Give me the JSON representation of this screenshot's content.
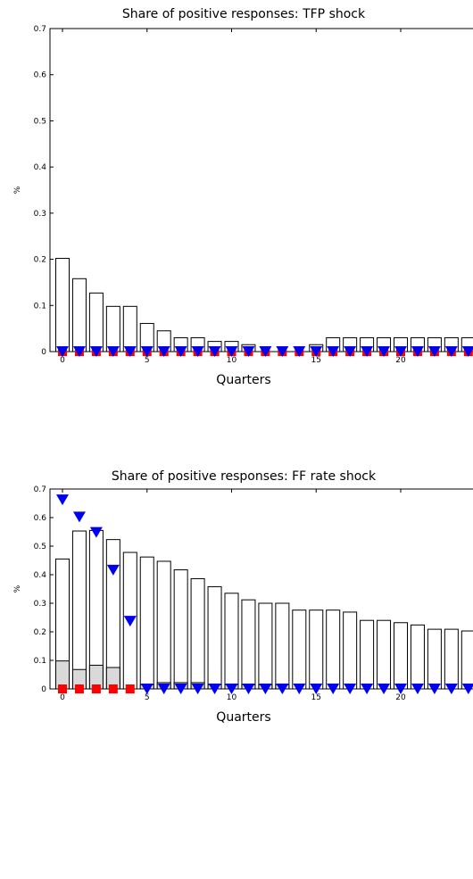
{
  "chart_data": [
    {
      "type": "bar",
      "title": "Share of positive responses: TFP shock",
      "xlabel": "Quarters",
      "ylabel": "%",
      "ylim": [
        0,
        0.7
      ],
      "yticks": [
        "0",
        "0.1",
        "0.2",
        "0.3",
        "0.4",
        "0.5",
        "0.6",
        "0.7"
      ],
      "xticks": [
        "0",
        "5",
        "10",
        "15",
        "20"
      ],
      "x": [
        0,
        1,
        2,
        3,
        4,
        5,
        6,
        7,
        8,
        9,
        10,
        11,
        12,
        13,
        14,
        15,
        16,
        17,
        18,
        19,
        20,
        21,
        22,
        23,
        24
      ],
      "bars": [
        0.202,
        0.158,
        0.127,
        0.098,
        0.098,
        0.061,
        0.045,
        0.03,
        0.03,
        0.022,
        0.022,
        0.015,
        0.0,
        0.0,
        0.0,
        0.015,
        0.03,
        0.03,
        0.03,
        0.03,
        0.03,
        0.03,
        0.03,
        0.03,
        0.03
      ],
      "shaded": [
        0,
        0,
        0,
        0,
        0,
        0,
        0,
        0,
        0,
        0,
        0,
        0,
        0,
        0,
        0,
        0,
        0,
        0,
        0,
        0,
        0,
        0,
        0,
        0,
        0
      ],
      "squares": [
        0,
        0,
        0,
        0,
        0,
        0,
        0,
        0,
        0,
        0,
        0,
        0,
        0,
        0,
        0,
        0,
        0,
        0,
        0,
        0,
        0,
        0,
        0,
        0,
        0
      ],
      "triangles": [
        0,
        0,
        0,
        0,
        0,
        0,
        0,
        0,
        0,
        0,
        0,
        0,
        0,
        0,
        0,
        0,
        0,
        0,
        0,
        0,
        0,
        0,
        0,
        0,
        0
      ],
      "colors": {
        "bar_fill": "#ffffff",
        "shaded_fill": "#d9d9d9",
        "square": "#ff0000",
        "triangle": "#0000ee"
      }
    },
    {
      "type": "bar",
      "title": "Share of positive responses: FF rate shock",
      "xlabel": "Quarters",
      "ylabel": "%",
      "ylim": [
        0,
        0.7
      ],
      "yticks": [
        "0",
        "0.1",
        "0.2",
        "0.3",
        "0.4",
        "0.5",
        "0.6",
        "0.7"
      ],
      "xticks": [
        "0",
        "5",
        "10",
        "15",
        "20"
      ],
      "x": [
        0,
        1,
        2,
        3,
        4,
        5,
        6,
        7,
        8,
        9,
        10,
        11,
        12,
        13,
        14,
        15,
        16,
        17,
        18,
        19,
        20,
        21,
        22,
        23,
        24
      ],
      "bars": [
        0.455,
        0.553,
        0.555,
        0.523,
        0.478,
        0.462,
        0.447,
        0.417,
        0.386,
        0.358,
        0.335,
        0.312,
        0.3,
        0.3,
        0.276,
        0.276,
        0.276,
        0.269,
        0.24,
        0.24,
        0.232,
        0.224,
        0.209,
        0.209,
        0.203
      ],
      "shaded": [
        0.098,
        0.068,
        0.083,
        0.075,
        0.0,
        0.015,
        0.022,
        0.022,
        0.022,
        0.015,
        0.015,
        0.015,
        0.015,
        0.015,
        0.0,
        0.0,
        0.0,
        0.0,
        0.0,
        0.0,
        0.0,
        0.0,
        0.0,
        0.0,
        0.0
      ],
      "squares": [
        0,
        0,
        0,
        0,
        0,
        null,
        null,
        null,
        null,
        null,
        null,
        null,
        null,
        null,
        null,
        null,
        null,
        null,
        null,
        null,
        null,
        null,
        null,
        null,
        null
      ],
      "triangles": [
        0.662,
        0.602,
        0.548,
        0.416,
        0.237,
        0,
        0,
        0,
        0,
        0,
        0,
        0,
        0,
        0,
        0,
        0,
        0,
        0,
        0,
        0,
        0,
        0,
        0,
        0,
        0
      ],
      "colors": {
        "bar_fill": "#ffffff",
        "shaded_fill": "#d9d9d9",
        "square": "#ff0000",
        "triangle": "#0000ee"
      }
    }
  ]
}
